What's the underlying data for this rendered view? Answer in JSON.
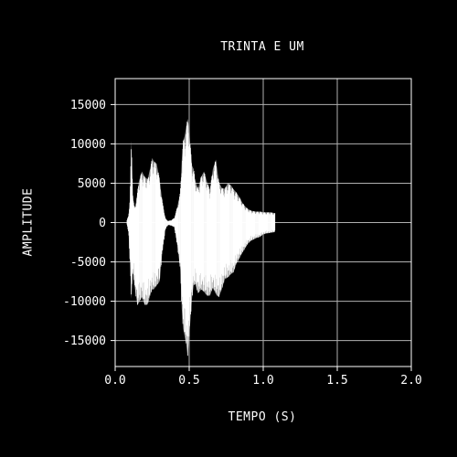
{
  "chart_data": {
    "type": "area",
    "title": "TRINTA E UM",
    "xlabel": "TEMPO (S)",
    "ylabel": "AMPLITUDE",
    "xlim": [
      0.0,
      2.0
    ],
    "ylim": [
      -18300,
      18300
    ],
    "x_ticks": [
      0.0,
      0.5,
      1.0,
      1.5,
      2.0
    ],
    "x_tick_labels": [
      "0.0",
      "0.5",
      "1.0",
      "1.5",
      "2.0"
    ],
    "y_ticks": [
      15000,
      10000,
      5000,
      0,
      -5000,
      -10000,
      -15000
    ],
    "y_tick_labels": [
      "15000",
      "10000",
      "5000",
      "0",
      "-5000",
      "-10000",
      "-15000"
    ],
    "grid": true,
    "colors": {
      "background": "#000000",
      "foreground": "#ffffff",
      "waveform": "#ffffff",
      "grid": "#b0b0b0"
    },
    "series": [
      {
        "x": [
          0.08,
          0.09,
          0.1,
          0.11,
          0.12,
          0.13,
          0.14,
          0.15,
          0.16,
          0.18,
          0.2,
          0.22,
          0.24,
          0.25,
          0.26,
          0.28,
          0.3,
          0.32,
          0.34,
          0.35,
          0.36,
          0.38,
          0.4,
          0.42,
          0.44,
          0.45,
          0.46,
          0.47,
          0.48,
          0.49,
          0.5,
          0.51,
          0.52,
          0.53,
          0.54,
          0.56,
          0.58,
          0.6,
          0.62,
          0.64,
          0.66,
          0.68,
          0.7,
          0.72,
          0.74,
          0.76,
          0.78,
          0.8,
          0.82,
          0.84,
          0.86,
          0.88,
          0.9,
          0.92,
          0.95,
          0.98,
          1.0,
          1.02,
          1.05,
          1.08
        ],
        "max": [
          300,
          900,
          3000,
          10400,
          3500,
          1800,
          2500,
          3800,
          5200,
          6500,
          5800,
          5500,
          7200,
          8200,
          7800,
          7500,
          5500,
          2500,
          500,
          300,
          200,
          300,
          600,
          2000,
          3800,
          8000,
          10400,
          11000,
          12200,
          13200,
          11800,
          9200,
          7200,
          6800,
          5400,
          4300,
          5800,
          6500,
          5200,
          4200,
          6800,
          8000,
          5200,
          4400,
          4300,
          5000,
          4800,
          4200,
          3800,
          3200,
          2500,
          2000,
          1700,
          1500,
          1400,
          1400,
          1300,
          1300,
          1300,
          1200
        ],
        "min": [
          -300,
          -1200,
          -5000,
          -9700,
          -6000,
          -8000,
          -9300,
          -10500,
          -10200,
          -9500,
          -10500,
          -10400,
          -9000,
          -8500,
          -8500,
          -8000,
          -7500,
          -3500,
          -800,
          -500,
          -300,
          -400,
          -600,
          -3000,
          -6000,
          -11000,
          -13500,
          -14500,
          -15500,
          -17000,
          -14500,
          -12000,
          -9500,
          -8000,
          -7800,
          -9000,
          -8500,
          -8800,
          -9300,
          -9300,
          -8300,
          -9100,
          -9500,
          -8500,
          -7200,
          -7000,
          -6600,
          -6300,
          -5200,
          -4500,
          -3800,
          -3200,
          -2600,
          -2300,
          -2000,
          -1800,
          -1500,
          -1400,
          -1300,
          -1200
        ]
      }
    ]
  }
}
